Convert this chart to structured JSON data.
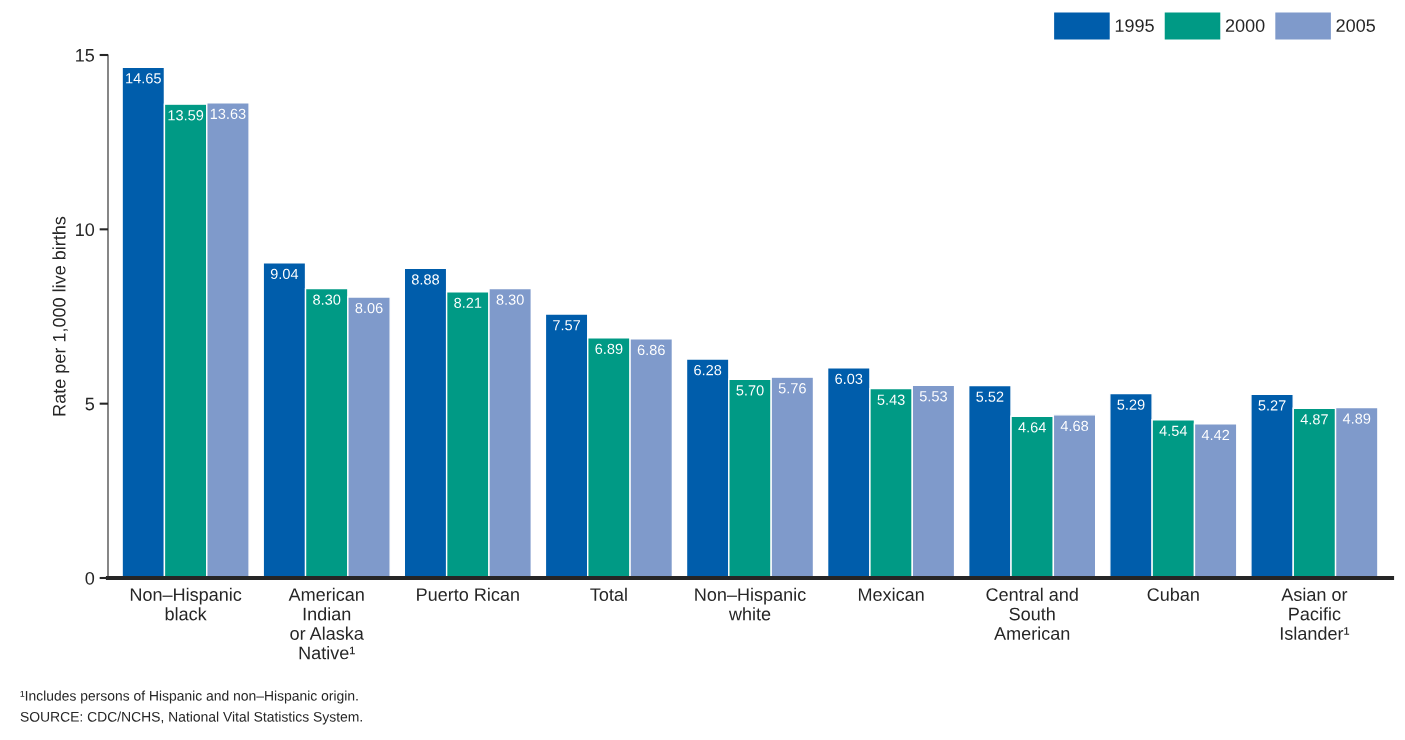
{
  "chart_data": {
    "type": "bar",
    "ylabel": "Rate per 1,000 live births",
    "categories": [
      "Non–Hispanic\nblack",
      "American\nIndian\nor Alaska\nNative¹",
      "Puerto Rican",
      "Total",
      "Non–Hispanic\nwhite",
      "Mexican",
      "Central and\nSouth\nAmerican",
      "Cuban",
      "Asian or\nPacific\nIslander¹"
    ],
    "series": [
      {
        "name": "1995",
        "color": "#005dab",
        "values": [
          14.65,
          9.04,
          8.88,
          7.57,
          6.28,
          6.03,
          5.52,
          5.29,
          5.27
        ],
        "value_labels": [
          "14.65",
          "9.04",
          "8.88",
          "7.57",
          "6.28",
          "6.03",
          "5.52",
          "5.29",
          "5.27"
        ]
      },
      {
        "name": "2000",
        "color": "#009a85",
        "values": [
          13.59,
          8.3,
          8.21,
          6.89,
          5.7,
          5.43,
          4.64,
          4.54,
          4.87
        ],
        "value_labels": [
          "13.59",
          "8.30",
          "8.21",
          "6.89",
          "5.70",
          "5.43",
          "4.64",
          "4.54",
          "4.87"
        ]
      },
      {
        "name": "2005",
        "color": "#7f9acb",
        "values": [
          13.63,
          8.06,
          8.3,
          6.86,
          5.76,
          5.53,
          4.68,
          4.42,
          4.89
        ],
        "value_labels": [
          "13.63",
          "8.06",
          "8.30",
          "6.86",
          "5.76",
          "5.53",
          "4.68",
          "4.42",
          "4.89"
        ]
      }
    ],
    "ylim": [
      0,
      15
    ],
    "yticks": [
      0,
      5,
      10,
      15
    ],
    "grid": false,
    "legend": "top right",
    "annotations": [
      "¹Includes persons of Hispanic and non–Hispanic origin.",
      "SOURCE: CDC/NCHS, National Vital Statistics System."
    ]
  }
}
